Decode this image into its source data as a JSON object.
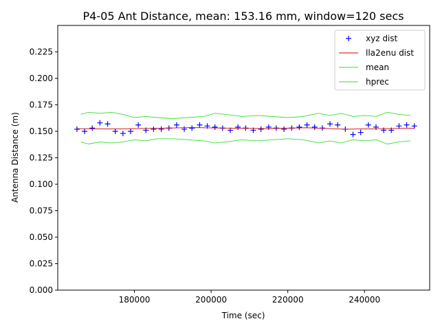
{
  "chart_data": {
    "type": "line",
    "title": "P4-05 Ant Distance, mean: 153.16 mm, window=120 secs",
    "xlabel": "Time (sec)",
    "ylabel": "Antenna Distance (m)",
    "xlim": [
      160000,
      257000
    ],
    "ylim": [
      0.0,
      0.25
    ],
    "xticks": [
      180000,
      200000,
      220000,
      240000
    ],
    "yticks": [
      0.0,
      0.025,
      0.05,
      0.075,
      0.1,
      0.125,
      0.15,
      0.175,
      0.2,
      0.225
    ],
    "grid": false,
    "legend_position": "top-right",
    "series": [
      {
        "name": "xyz dist",
        "style": "marker",
        "color": "#0000ff",
        "x": [
          165000,
          167000,
          169000,
          171000,
          173000,
          175000,
          177000,
          179000,
          181000,
          183000,
          185000,
          187000,
          189000,
          191000,
          193000,
          195000,
          197000,
          199000,
          201000,
          203000,
          205000,
          207000,
          209000,
          211000,
          213000,
          215000,
          217000,
          219000,
          221000,
          223000,
          225000,
          227000,
          229000,
          231000,
          233000,
          235000,
          237000,
          239000,
          241000,
          243000,
          245000,
          247000,
          249000,
          251000,
          253000
        ],
        "y": [
          0.152,
          0.15,
          0.153,
          0.158,
          0.157,
          0.15,
          0.148,
          0.15,
          0.156,
          0.151,
          0.152,
          0.152,
          0.153,
          0.156,
          0.152,
          0.153,
          0.156,
          0.155,
          0.154,
          0.153,
          0.151,
          0.154,
          0.153,
          0.151,
          0.152,
          0.154,
          0.153,
          0.152,
          0.153,
          0.154,
          0.156,
          0.154,
          0.153,
          0.157,
          0.156,
          0.152,
          0.147,
          0.149,
          0.156,
          0.154,
          0.151,
          0.151,
          0.155,
          0.156,
          0.155
        ]
      },
      {
        "name": "lla2enu dist",
        "style": "line",
        "color": "#cc0000",
        "x": [
          165000,
          175000,
          185000,
          195000,
          205000,
          215000,
          225000,
          235000,
          245000,
          253000
        ],
        "y": [
          0.1525,
          0.1522,
          0.1528,
          0.1535,
          0.153,
          0.1526,
          0.1534,
          0.152,
          0.1525,
          0.153
        ]
      },
      {
        "name": "mean",
        "style": "line",
        "color": "#33dd33",
        "x": [
          166000,
          168000,
          171000,
          174000,
          177000,
          180000,
          183000,
          186000,
          190000,
          194000,
          198000,
          201000,
          204000,
          208000,
          212000,
          216000,
          220000,
          224000,
          228000,
          231000,
          234000,
          237000,
          240000,
          243000,
          246000,
          249000,
          252000
        ],
        "y": [
          0.166,
          0.168,
          0.167,
          0.168,
          0.166,
          0.163,
          0.164,
          0.163,
          0.162,
          0.163,
          0.164,
          0.167,
          0.166,
          0.164,
          0.165,
          0.164,
          0.163,
          0.164,
          0.167,
          0.165,
          0.167,
          0.164,
          0.165,
          0.164,
          0.168,
          0.166,
          0.165
        ]
      },
      {
        "name": "hprec",
        "style": "line",
        "color": "#33dd33",
        "x": [
          166000,
          168000,
          171000,
          174000,
          177000,
          180000,
          183000,
          186000,
          190000,
          194000,
          198000,
          201000,
          204000,
          208000,
          212000,
          216000,
          220000,
          224000,
          228000,
          231000,
          234000,
          237000,
          240000,
          243000,
          246000,
          249000,
          252000
        ],
        "y": [
          0.14,
          0.138,
          0.14,
          0.139,
          0.14,
          0.142,
          0.141,
          0.143,
          0.143,
          0.142,
          0.141,
          0.139,
          0.14,
          0.142,
          0.141,
          0.142,
          0.143,
          0.142,
          0.139,
          0.141,
          0.139,
          0.142,
          0.141,
          0.142,
          0.138,
          0.14,
          0.141
        ]
      }
    ]
  }
}
